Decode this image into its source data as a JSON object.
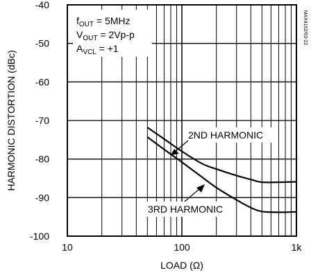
{
  "chart_data": {
    "type": "line",
    "x_scale": "log",
    "xlim": [
      10,
      1000
    ],
    "ylim": [
      -100,
      -40
    ],
    "grid": true,
    "xlabel": "LOAD (Ω)",
    "ylabel": "HARMONIC DISTORTION (dBc)",
    "x_ticks": [
      {
        "value": 10,
        "label": "10"
      },
      {
        "value": 100,
        "label": "100"
      },
      {
        "value": 1000,
        "label": "1k"
      }
    ],
    "y_ticks": [
      {
        "value": -40,
        "label": "-40"
      },
      {
        "value": -50,
        "label": "-50"
      },
      {
        "value": -60,
        "label": "-60"
      },
      {
        "value": -70,
        "label": "-70"
      },
      {
        "value": -80,
        "label": "-80"
      },
      {
        "value": -90,
        "label": "-90"
      },
      {
        "value": -100,
        "label": "-100"
      }
    ],
    "series": [
      {
        "name": "2ND HARMONIC",
        "x": [
          50,
          70,
          100,
          150,
          200,
          300,
          400,
          500,
          700,
          1000
        ],
        "y": [
          -71.8,
          -74.8,
          -78.0,
          -81.2,
          -82.6,
          -84.3,
          -85.3,
          -86.0,
          -86.0,
          -85.9
        ]
      },
      {
        "name": "3RD HARMONIC",
        "x": [
          50,
          70,
          100,
          150,
          200,
          300,
          400,
          500,
          700,
          1000
        ],
        "y": [
          -74.3,
          -77.5,
          -80.8,
          -84.7,
          -87.4,
          -90.6,
          -92.6,
          -93.6,
          -93.8,
          -93.7
        ]
      }
    ],
    "annotations": {
      "conditions": [
        {
          "main": "f",
          "sub": "OUT",
          "rest": " = 5MHz"
        },
        {
          "main": "V",
          "sub": "OUT",
          "rest": " = 2Vp-p"
        },
        {
          "main": "A",
          "sub": "VCL",
          "rest": " = +1"
        }
      ],
      "figure_code": "MAX4102/03-22"
    }
  }
}
